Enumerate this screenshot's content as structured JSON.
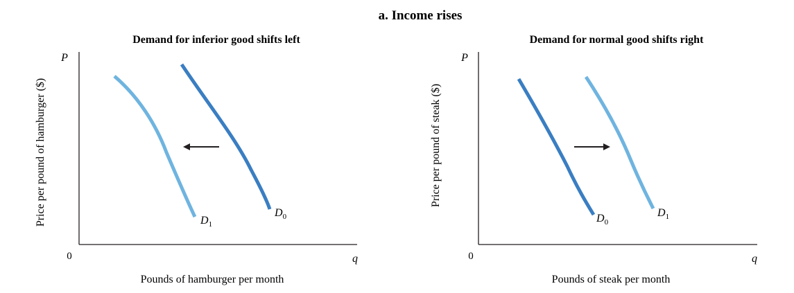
{
  "figure": {
    "title": "a. Income rises"
  },
  "colors": {
    "original_curve": "#3a7ec2",
    "shifted_curve": "#6fb4e0",
    "axis": "#231f20",
    "arrow": "#231f20"
  },
  "panels": [
    {
      "title": "Demand for inferior good shifts left",
      "y_axis_symbol": "P",
      "x_axis_symbol": "q",
      "origin": "0",
      "ylabel": "Price per pound of hamburger ($)",
      "xlabel": "Pounds of hamburger per month",
      "shift_direction": "left",
      "curves": [
        {
          "label": "D",
          "subscript": "0",
          "role": "original"
        },
        {
          "label": "D",
          "subscript": "1",
          "role": "shifted"
        }
      ]
    },
    {
      "title": "Demand for normal good shifts right",
      "y_axis_symbol": "P",
      "x_axis_symbol": "q",
      "origin": "0",
      "ylabel": "Price per pound of steak ($)",
      "xlabel": "Pounds of steak per month",
      "shift_direction": "right",
      "curves": [
        {
          "label": "D",
          "subscript": "0",
          "role": "original"
        },
        {
          "label": "D",
          "subscript": "1",
          "role": "shifted"
        }
      ]
    }
  ]
}
